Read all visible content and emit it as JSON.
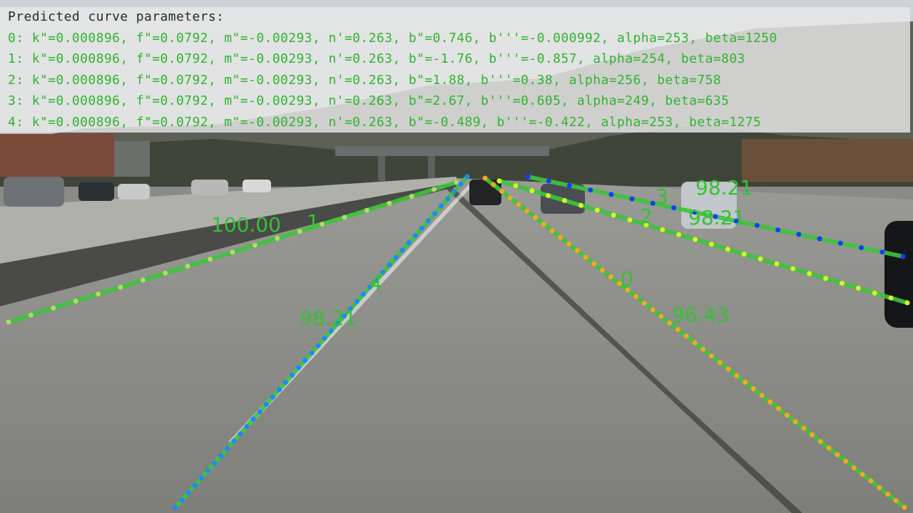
{
  "panel": {
    "title": "Predicted curve parameters:",
    "lines": [
      "0: k\"=0.000896, f\"=0.0792, m\"=-0.00293, n'=0.263, b\"=0.746, b'''=-0.000992, alpha=253, beta=1250",
      "1: k\"=0.000896, f\"=0.0792, m\"=-0.00293, n'=0.263, b\"=-1.76, b'''=-0.857, alpha=254, beta=803",
      "2: k\"=0.000896, f\"=0.0792, m\"=-0.00293, n'=0.263, b\"=1.88, b'''=0.38, alpha=256, beta=758",
      "3: k\"=0.000896, f\"=0.0792, m\"=-0.00293, n'=0.263, b\"=2.67, b'''=0.605, alpha=249, beta=635",
      "4: k\"=0.000896, f\"=0.0792, m\"=-0.00293, n'=0.263, b\"=-0.489, b'''=-0.422, alpha=253, beta=1275"
    ]
  },
  "lanes": [
    {
      "id": "0",
      "score": "96.43",
      "dot_color": "#f5a623"
    },
    {
      "id": "1",
      "score": "100.00",
      "dot_color": "#b5d86b"
    },
    {
      "id": "2",
      "score": "98.21",
      "dot_color": "#d8f22a"
    },
    {
      "id": "3",
      "score": "98.21",
      "dot_color": "#1a3cff"
    },
    {
      "id": "4",
      "score": "98.21",
      "dot_color": "#1e88ff"
    }
  ],
  "colors": {
    "curve_line": "#3ec43e",
    "label_text": "#34c234",
    "panel_title": "#2a2a2a",
    "panel_params": "#2fb52f"
  }
}
